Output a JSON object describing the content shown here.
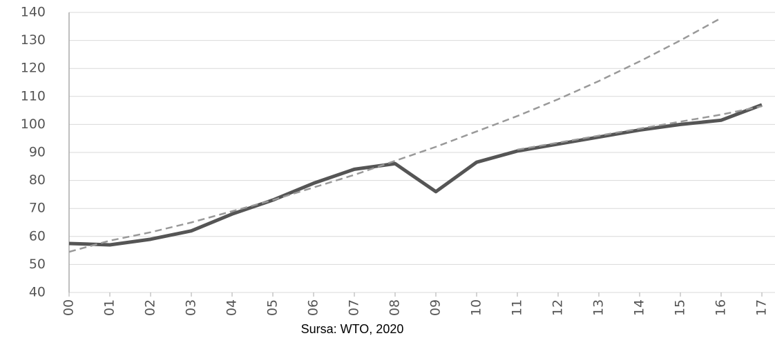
{
  "chart_data": {
    "type": "line",
    "caption": "Sursa: WTO, 2020",
    "categories": [
      "00",
      "01",
      "02",
      "03",
      "04",
      "05",
      "06",
      "07",
      "08",
      "09",
      "10",
      "11",
      "12",
      "13",
      "14",
      "15",
      "16",
      "17"
    ],
    "series": [
      {
        "color": "#555555",
        "dash": false,
        "values": [
          57.5,
          57,
          59,
          62,
          68,
          73,
          79,
          84,
          86,
          76,
          86.5,
          90.5,
          93,
          95.5,
          98,
          100,
          101.5,
          107
        ]
      },
      {
        "color": "#999999",
        "dash": true,
        "values": [
          54.5,
          58.5,
          61.5,
          65,
          69,
          73,
          77.5,
          82,
          87,
          92,
          97.5,
          103,
          109,
          115.5,
          122.5,
          130,
          138,
          null
        ]
      },
      {
        "color": "#999999",
        "dash": true,
        "values": [
          null,
          null,
          null,
          null,
          null,
          null,
          null,
          null,
          null,
          null,
          null,
          91,
          93.5,
          96,
          98.5,
          101,
          103.5,
          106.5
        ]
      }
    ],
    "ylim": [
      40,
      140
    ],
    "yticks": [
      40,
      50,
      60,
      70,
      80,
      90,
      100,
      110,
      120,
      130,
      140
    ],
    "grid": true
  }
}
